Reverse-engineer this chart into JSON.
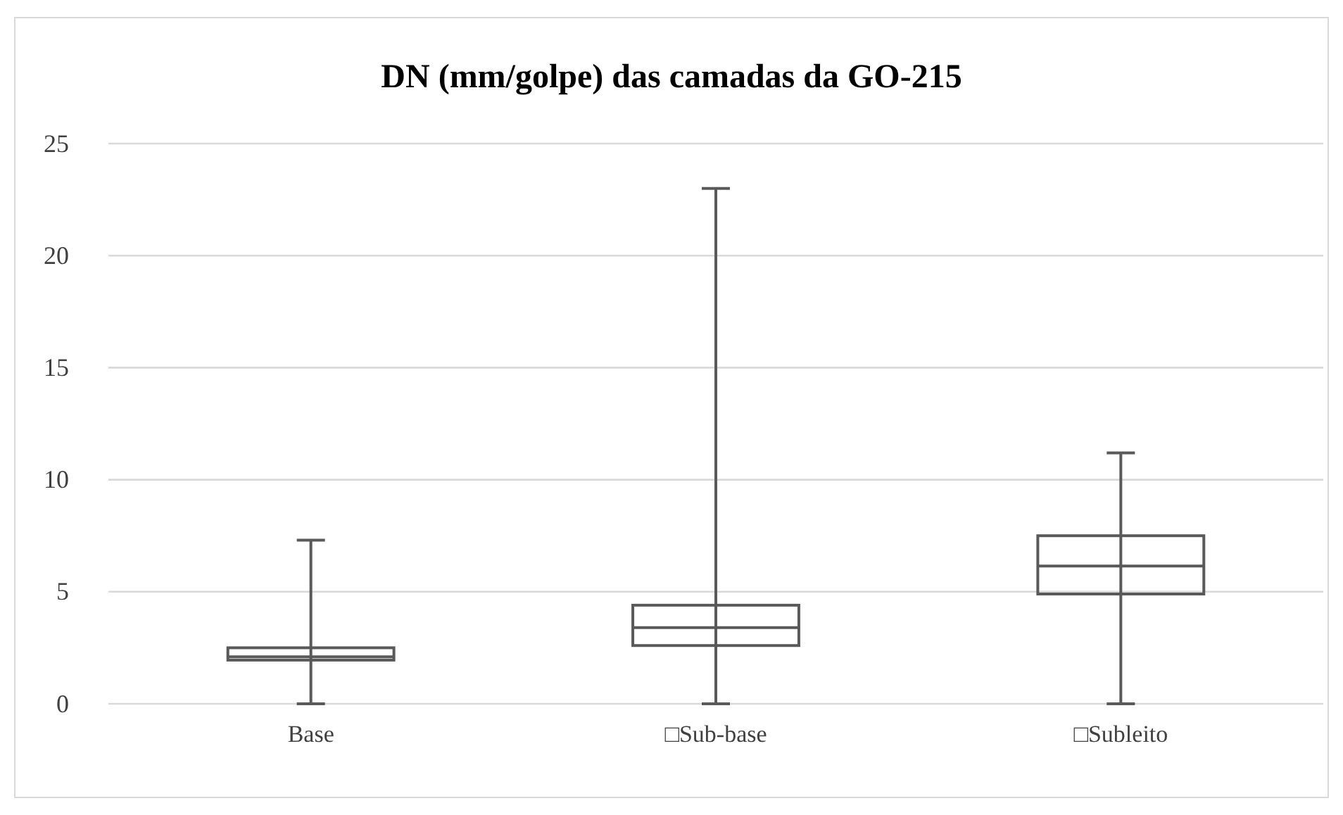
{
  "chart_data": {
    "type": "box",
    "title": "DN (mm/golpe)  das camadas da GO-215",
    "categories": [
      "Base",
      "□Sub-base",
      "□Subleito"
    ],
    "boxes": [
      {
        "low": 0,
        "q1": 1.95,
        "median": 2.1,
        "q3": 2.5,
        "high": 7.3
      },
      {
        "low": 0,
        "q1": 2.6,
        "median": 3.4,
        "q3": 4.4,
        "high": 23
      },
      {
        "low": 0,
        "q1": 4.9,
        "median": 6.15,
        "q3": 7.5,
        "high": 11.2
      }
    ],
    "color": "#595959",
    "ylim": [
      0,
      25
    ],
    "yticks": [
      0,
      5,
      10,
      15,
      20,
      25
    ],
    "grid": "y"
  }
}
